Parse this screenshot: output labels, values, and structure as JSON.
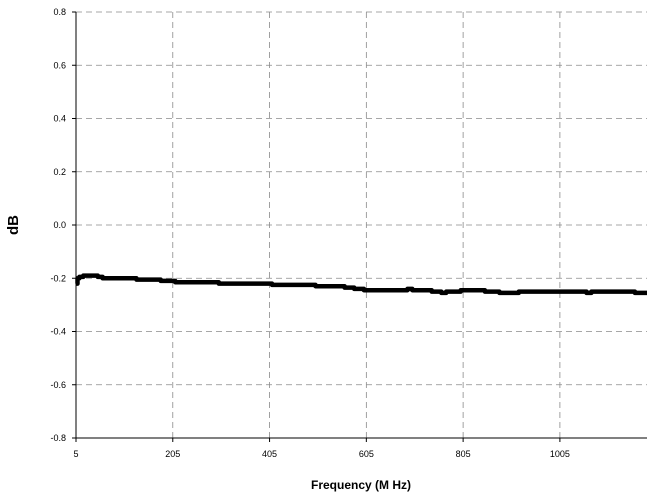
{
  "chart_data": {
    "type": "line",
    "title": "",
    "xlabel": "Frequency (M Hz)",
    "ylabel": "dB",
    "xlim": [
      5,
      1185
    ],
    "ylim": [
      -0.8,
      0.8
    ],
    "xticks": [
      5,
      205,
      405,
      605,
      805,
      1005
    ],
    "yticks": [
      0.8,
      0.6,
      0.4,
      0.2,
      0.0,
      -0.2,
      -0.4,
      -0.6,
      -0.8
    ],
    "grid": true,
    "legend": "none",
    "line_color": "#000000",
    "series": [
      {
        "x": [
          5,
          8,
          12,
          20,
          30,
          40,
          50,
          60,
          80,
          100,
          120,
          130,
          150,
          180,
          200,
          210,
          240,
          260,
          300,
          350,
          400,
          410,
          450,
          500,
          550,
          560,
          580,
          600,
          650,
          690,
          700,
          720,
          740,
          760,
          770,
          790,
          800,
          840,
          850,
          860,
          880,
          900,
          920,
          940,
          960,
          1000,
          1050,
          1060,
          1070,
          1080,
          1100,
          1150,
          1160,
          1185
        ],
        "y": [
          -0.22,
          -0.2,
          -0.195,
          -0.19,
          -0.19,
          -0.19,
          -0.195,
          -0.2,
          -0.2,
          -0.2,
          -0.2,
          -0.205,
          -0.205,
          -0.21,
          -0.21,
          -0.215,
          -0.215,
          -0.215,
          -0.22,
          -0.22,
          -0.22,
          -0.225,
          -0.225,
          -0.23,
          -0.23,
          -0.235,
          -0.24,
          -0.245,
          -0.245,
          -0.24,
          -0.245,
          -0.245,
          -0.25,
          -0.255,
          -0.25,
          -0.25,
          -0.245,
          -0.245,
          -0.25,
          -0.25,
          -0.255,
          -0.255,
          -0.25,
          -0.25,
          -0.25,
          -0.25,
          -0.25,
          -0.255,
          -0.25,
          -0.25,
          -0.25,
          -0.25,
          -0.255,
          -0.255
        ]
      }
    ]
  }
}
